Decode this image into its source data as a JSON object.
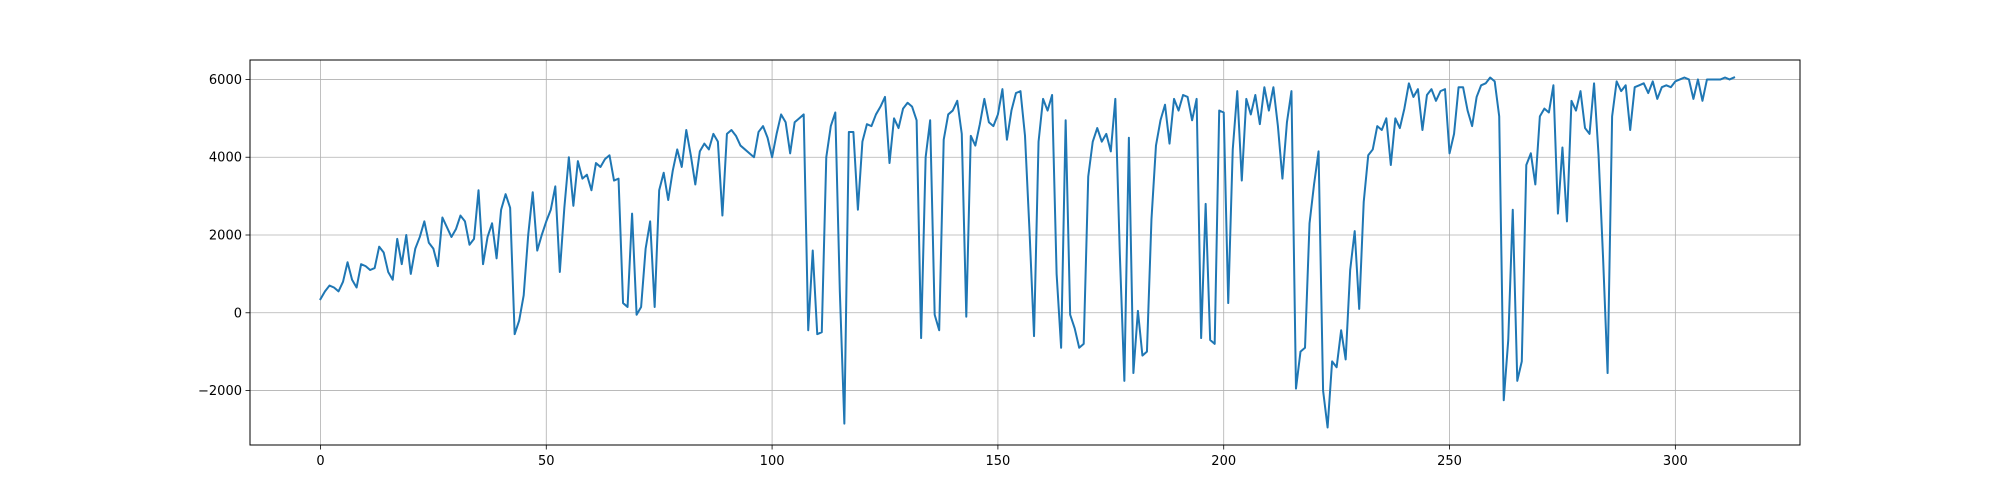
{
  "chart_data": {
    "type": "line",
    "title": "",
    "xlabel": "",
    "ylabel": "",
    "xlim": [
      -15.6,
      327.6
    ],
    "ylim": [
      -3400,
      6500
    ],
    "grid": true,
    "line_color": "#1f77b4",
    "x_ticks": [
      0,
      50,
      100,
      150,
      200,
      250,
      300
    ],
    "y_ticks": [
      -2000,
      0,
      2000,
      4000,
      6000
    ],
    "x_tick_labels": [
      "0",
      "50",
      "100",
      "150",
      "200",
      "250",
      "300"
    ],
    "y_tick_labels": [
      "−2000",
      "0",
      "2000",
      "4000",
      "6000"
    ],
    "series": [
      {
        "x_start": 0,
        "values": [
          350,
          550,
          700,
          650,
          550,
          800,
          1300,
          850,
          650,
          1250,
          1200,
          1100,
          1150,
          1700,
          1550,
          1050,
          850,
          1900,
          1250,
          2000,
          1000,
          1650,
          1950,
          2350,
          1800,
          1650,
          1200,
          2450,
          2200,
          1950,
          2150,
          2500,
          2350,
          1750,
          1900,
          3150,
          1250,
          1950,
          2300,
          1400,
          2650,
          3050,
          2700,
          -550,
          -200,
          450,
          2000,
          3100,
          1600,
          2000,
          2350,
          2650,
          3250,
          1050,
          2700,
          4000,
          2750,
          3900,
          3450,
          3550,
          3150,
          3850,
          3750,
          3950,
          4050,
          3400,
          3450,
          250,
          150,
          2550,
          -50,
          150,
          1650,
          2350,
          150,
          3150,
          3600,
          2900,
          3650,
          4200,
          3750,
          4700,
          4050,
          3300,
          4150,
          4350,
          4200,
          4600,
          4400,
          2500,
          4600,
          4700,
          4550,
          4300,
          4200,
          4100,
          4000,
          4650,
          4800,
          4500,
          4000,
          4600,
          5100,
          4900,
          4100,
          4900,
          5000,
          5100,
          -450,
          1600,
          -550,
          -500,
          4000,
          4800,
          5150,
          550,
          -2850,
          4650,
          4650,
          2650,
          4400,
          4850,
          4800,
          5100,
          5300,
          5550,
          3850,
          5000,
          4750,
          5250,
          5400,
          5300,
          4950,
          -650,
          4000,
          4950,
          -50,
          -450,
          4450,
          5100,
          5200,
          5450,
          4600,
          -100,
          4550,
          4300,
          4850,
          5500,
          4900,
          4800,
          5100,
          5750,
          4450,
          5200,
          5650,
          5700,
          4550,
          2100,
          -600,
          4400,
          5500,
          5200,
          5600,
          1000,
          -900,
          4950,
          -50,
          -400,
          -900,
          -800,
          3500,
          4400,
          4750,
          4400,
          4600,
          4150,
          5500,
          1500,
          -1750,
          4500,
          -1550,
          50,
          -1100,
          -1000,
          2400,
          4300,
          4950,
          5350,
          4350,
          5500,
          5200,
          5600,
          5550,
          4950,
          5500,
          -650,
          2800,
          -700,
          -800,
          5200,
          5150,
          250,
          4200,
          5700,
          3400,
          5500,
          5100,
          5600,
          4850,
          5800,
          5200,
          5800,
          4800,
          3450,
          4900,
          5700,
          -1950,
          -1000,
          -900,
          2300,
          3300,
          4150,
          -2000,
          -2950,
          -1250,
          -1400,
          -450,
          -1200,
          1100,
          2100,
          100,
          2850,
          4050,
          4200,
          4800,
          4700,
          5000,
          3800,
          5000,
          4750,
          5250,
          5900,
          5550,
          5750,
          4700,
          5600,
          5750,
          5450,
          5700,
          5750,
          4100,
          4600,
          5800,
          5800,
          5200,
          4800,
          5550,
          5850,
          5900,
          6050,
          5950,
          5050,
          -2250,
          -700,
          2650,
          -1750,
          -1250,
          3800,
          4100,
          3300,
          5050,
          5250,
          5150,
          5850,
          2550,
          4250,
          2350,
          5450,
          5200,
          5700,
          4750,
          4600,
          5900,
          4050,
          1400,
          -1550,
          5050,
          5950,
          5700,
          5850,
          4700,
          5800,
          5850,
          5900,
          5650,
          5950,
          5500,
          5800,
          5850,
          5800,
          5950,
          6000,
          6050,
          6000,
          5500,
          6000,
          5450,
          6000,
          6000,
          6000,
          6000,
          6050,
          6000,
          6050
        ]
      }
    ]
  }
}
